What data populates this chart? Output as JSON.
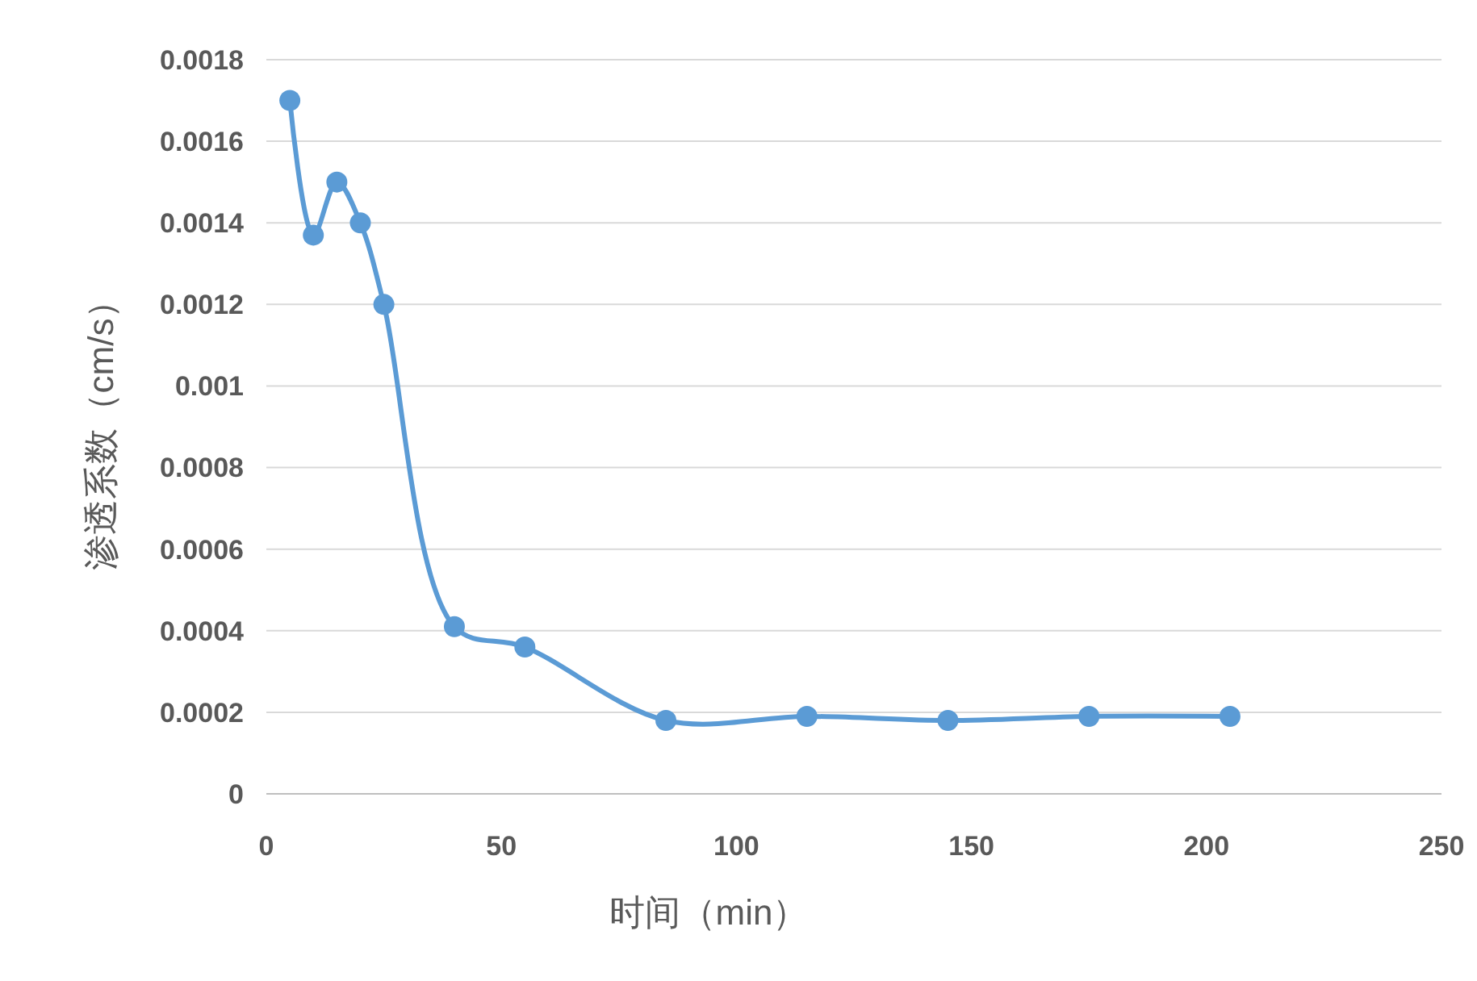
{
  "chart_data": {
    "type": "line",
    "xlabel": "时间（min）",
    "ylabel": "渗透系数（cm/s）",
    "x": [
      5,
      10,
      15,
      20,
      25,
      40,
      55,
      85,
      115,
      145,
      175,
      205
    ],
    "series": [
      {
        "color": "#5b9bd5",
        "values": [
          0.0017,
          0.00137,
          0.0015,
          0.0014,
          0.0012,
          0.00041,
          0.00036,
          0.00018,
          0.00019,
          0.00018,
          0.00019,
          0.00019
        ]
      }
    ],
    "xlim": [
      0,
      250
    ],
    "xticks": [
      0,
      50,
      100,
      150,
      200,
      250
    ],
    "ylim": [
      0,
      0.0018
    ],
    "yticks": [
      0,
      0.0002,
      0.0004,
      0.0006,
      0.0008,
      0.001,
      0.0012,
      0.0014,
      0.0016,
      0.0018
    ],
    "grid": "y",
    "marker": "circle",
    "line_style": "solid"
  }
}
